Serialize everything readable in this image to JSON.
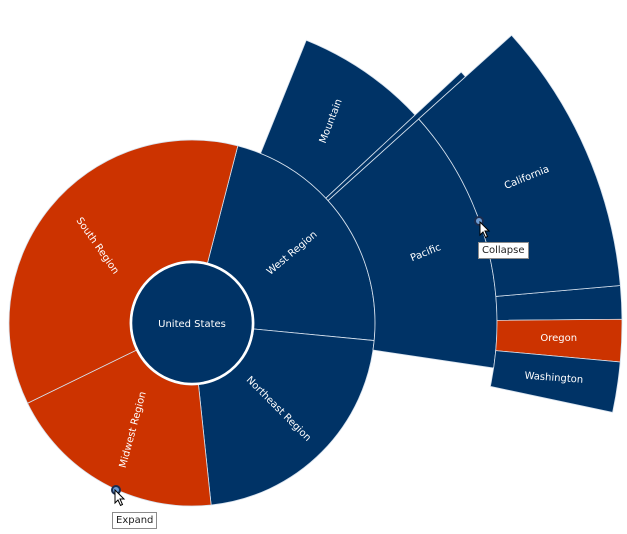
{
  "colors": {
    "blue": "#003366",
    "orange": "#cc3300",
    "ring": "#ffffff",
    "divider": "#d7e2ee"
  },
  "chart_data": {
    "type": "sunburst",
    "title": "",
    "root": {
      "name": "United States",
      "color": "blue"
    },
    "regions": [
      {
        "name": "West Region",
        "color": "blue"
      },
      {
        "name": "Northeast Region",
        "color": "blue"
      },
      {
        "name": "Midwest Region",
        "color": "orange"
      },
      {
        "name": "South Region",
        "color": "orange"
      }
    ],
    "subregions": [
      {
        "name": "Mountain",
        "parent": "West Region",
        "color": "blue"
      },
      {
        "name": "Pacific",
        "parent": "West Region",
        "color": "blue"
      }
    ],
    "states": [
      {
        "name": "California",
        "parent": "Pacific",
        "color": "blue"
      },
      {
        "name": "Oregon",
        "parent": "Pacific",
        "color": "orange"
      },
      {
        "name": "Washington",
        "parent": "Pacific",
        "color": "blue"
      }
    ]
  },
  "controls": {
    "collapse_label": "Collapse",
    "expand_label": "Expand"
  }
}
